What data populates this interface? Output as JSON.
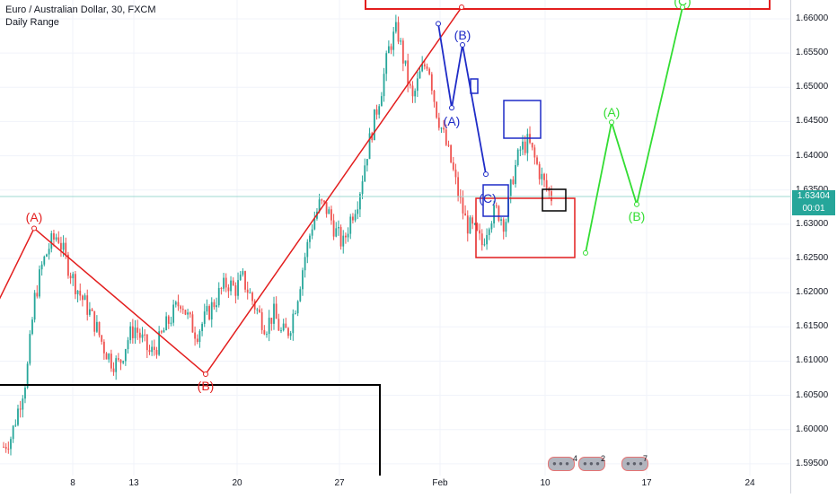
{
  "header": {
    "symbol_line": "Euro / Australian Dollar, 30, FXCM",
    "indicator_line": "Daily Range"
  },
  "chart_data": {
    "type": "candlestick",
    "title": "Euro / Australian Dollar, 30, FXCM",
    "indicator": "Daily Range",
    "y_axis": {
      "range": [
        1.593,
        1.663
      ],
      "ticks": [
        "1.66000",
        "1.65500",
        "1.65000",
        "1.64500",
        "1.64000",
        "1.63500",
        "1.63000",
        "1.62500",
        "1.62000",
        "1.61500",
        "1.61000",
        "1.60500",
        "1.60000",
        "1.59500"
      ]
    },
    "x_axis": {
      "ticks": [
        "8",
        "13",
        "20",
        "27",
        "Feb",
        "10",
        "17",
        "24"
      ]
    },
    "current_price": "1.63404",
    "countdown": "00:01",
    "price_path": [
      1.5975,
      1.599,
      1.6035,
      1.608,
      1.619,
      1.624,
      1.627,
      1.6285,
      1.625,
      1.622,
      1.6195,
      1.6175,
      1.615,
      1.612,
      1.61,
      1.6095,
      1.613,
      1.615,
      1.613,
      1.611,
      1.6125,
      1.615,
      1.617,
      1.619,
      1.616,
      1.614,
      1.616,
      1.618,
      1.62,
      1.6215,
      1.6205,
      1.622,
      1.6195,
      1.617,
      1.615,
      1.617,
      1.614,
      1.6145,
      1.619,
      1.625,
      1.63,
      1.633,
      1.632,
      1.629,
      1.627,
      1.631,
      1.634,
      1.64,
      1.645,
      1.65,
      1.656,
      1.6585,
      1.653,
      1.648,
      1.652,
      1.654,
      1.647,
      1.643,
      1.639,
      1.634,
      1.63,
      1.629,
      1.627,
      1.631,
      1.632,
      1.63,
      1.637,
      1.641,
      1.642,
      1.639,
      1.636,
      1.634
    ],
    "red_wave": {
      "labels": [
        "(A)",
        "(B)"
      ],
      "points": [
        [
          -5,
          1.6179
        ],
        [
          38,
          1.6294
        ],
        [
          229,
          1.6081
        ],
        [
          514,
          1.6617
        ]
      ]
    },
    "blue_wave": {
      "labels": [
        "(B)",
        "(A)",
        "(C)"
      ],
      "points": [
        [
          488,
          1.6593
        ],
        [
          503,
          1.647
        ],
        [
          515,
          1.6562
        ],
        [
          541,
          1.6373
        ]
      ]
    },
    "green_projection": {
      "labels": [
        "(A)",
        "(B)",
        "(C)"
      ],
      "points": [
        [
          652,
          1.6258
        ],
        [
          681,
          1.6449
        ],
        [
          709,
          1.6329
        ],
        [
          760,
          1.6617
        ]
      ]
    },
    "series_colors": {
      "up": "#26a69a",
      "down": "#ef5350",
      "red_wave": "#e31e1e",
      "blue_wave": "#1f2cc7",
      "green_projection": "#33dd33",
      "current_price_line": "#26a69a"
    },
    "events": [
      {
        "count": "4"
      },
      {
        "count": "2"
      },
      {
        "count": "7"
      }
    ]
  }
}
